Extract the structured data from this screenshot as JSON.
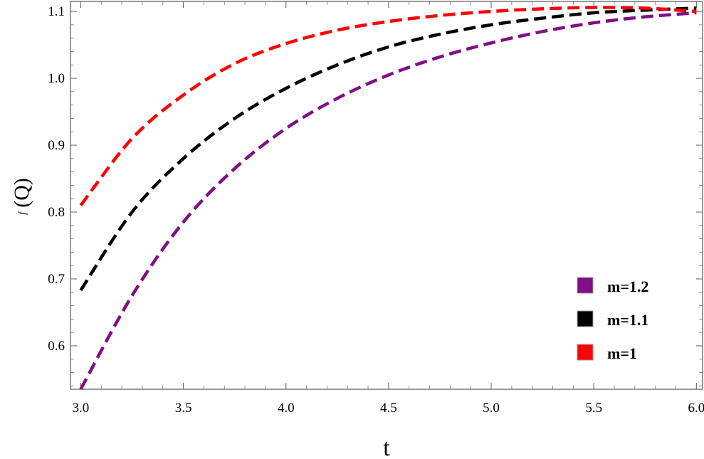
{
  "chart_data": {
    "type": "line",
    "xlabel": "t",
    "ylabel_prefix": "f",
    "ylabel_main": "(Q)",
    "xlim": [
      2.95,
      6.03
    ],
    "ylim": [
      0.535,
      1.115
    ],
    "xticks": [
      3.0,
      3.5,
      4.0,
      4.5,
      5.0,
      5.5,
      6.0
    ],
    "xtick_labels": [
      "3.0",
      "3.5",
      "4.0",
      "4.5",
      "5.0",
      "5.5",
      "6.0"
    ],
    "yticks": [
      0.6,
      0.7,
      0.8,
      0.9,
      1.0,
      1.1
    ],
    "ytick_labels": [
      "0.6",
      "0.7",
      "0.8",
      "0.9",
      "1.0",
      "1.1"
    ],
    "grid": false,
    "legend_position": "bottom-right",
    "x": [
      3.0,
      3.25,
      3.5,
      3.75,
      4.0,
      4.25,
      4.5,
      4.75,
      5.0,
      5.25,
      5.5,
      5.75,
      6.0
    ],
    "series": [
      {
        "name": "m=1.2",
        "color": "#7f0f85",
        "values": [
          0.535,
          0.675,
          0.785,
          0.865,
          0.925,
          0.97,
          1.005,
          1.032,
          1.053,
          1.07,
          1.083,
          1.092,
          1.098
        ]
      },
      {
        "name": "m=1.1",
        "color": "#000000",
        "values": [
          0.683,
          0.8,
          0.88,
          0.94,
          0.985,
          1.02,
          1.047,
          1.066,
          1.08,
          1.09,
          1.098,
          1.102,
          1.105
        ]
      },
      {
        "name": "m=1",
        "color": "#ff0000",
        "values": [
          0.81,
          0.91,
          0.975,
          1.022,
          1.052,
          1.072,
          1.085,
          1.094,
          1.1,
          1.104,
          1.106,
          1.105,
          1.1
        ]
      }
    ]
  }
}
